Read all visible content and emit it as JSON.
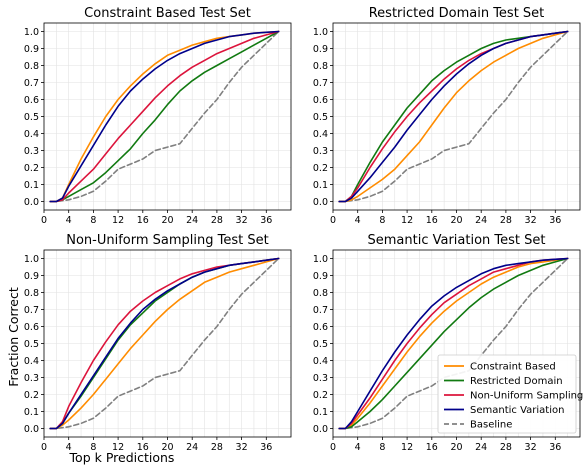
{
  "figure": {
    "ylabel": "Fraction Correct",
    "xlabel": "Top k Predictions"
  },
  "chart_data": [
    {
      "type": "line",
      "title": "Constraint Based Test Set",
      "xlim": [
        0,
        40
      ],
      "ylim": [
        -0.05,
        1.05
      ],
      "xticks": [
        0,
        4,
        8,
        12,
        16,
        20,
        24,
        28,
        32,
        36
      ],
      "yticks": [
        0.0,
        0.1,
        0.2,
        0.3,
        0.4,
        0.5,
        0.6,
        0.7,
        0.8,
        0.9,
        1.0
      ],
      "grid": true,
      "series": [
        {
          "name": "Constraint Based",
          "color": "#ff8c00",
          "dash": "solid",
          "x": [
            1,
            2,
            3,
            4,
            6,
            8,
            10,
            12,
            14,
            16,
            18,
            20,
            22,
            24,
            26,
            28,
            30,
            32,
            34,
            36,
            38
          ],
          "y": [
            0.0,
            0.0,
            0.02,
            0.1,
            0.25,
            0.38,
            0.5,
            0.6,
            0.68,
            0.75,
            0.81,
            0.86,
            0.89,
            0.92,
            0.94,
            0.96,
            0.97,
            0.98,
            0.99,
            0.995,
            1.0
          ]
        },
        {
          "name": "Restricted Domain",
          "color": "#117a11",
          "dash": "solid",
          "x": [
            1,
            2,
            3,
            4,
            6,
            8,
            10,
            12,
            14,
            16,
            18,
            20,
            22,
            24,
            26,
            28,
            30,
            32,
            34,
            36,
            38
          ],
          "y": [
            0.0,
            0.0,
            0.01,
            0.03,
            0.07,
            0.11,
            0.17,
            0.24,
            0.31,
            0.4,
            0.48,
            0.57,
            0.65,
            0.71,
            0.76,
            0.8,
            0.84,
            0.88,
            0.92,
            0.96,
            1.0
          ]
        },
        {
          "name": "Non-Uniform Sampling",
          "color": "#dc143c",
          "dash": "solid",
          "x": [
            1,
            2,
            3,
            4,
            6,
            8,
            10,
            12,
            14,
            16,
            18,
            20,
            22,
            24,
            26,
            28,
            30,
            32,
            34,
            36,
            38
          ],
          "y": [
            0.0,
            0.0,
            0.01,
            0.05,
            0.12,
            0.19,
            0.28,
            0.37,
            0.45,
            0.53,
            0.61,
            0.68,
            0.74,
            0.79,
            0.83,
            0.87,
            0.9,
            0.93,
            0.96,
            0.98,
            1.0
          ]
        },
        {
          "name": "Semantic Variation",
          "color": "#00008b",
          "dash": "solid",
          "x": [
            1,
            2,
            3,
            4,
            6,
            8,
            10,
            12,
            14,
            16,
            18,
            20,
            22,
            24,
            26,
            28,
            30,
            32,
            34,
            36,
            38
          ],
          "y": [
            0.0,
            0.0,
            0.02,
            0.09,
            0.21,
            0.33,
            0.45,
            0.56,
            0.65,
            0.72,
            0.78,
            0.83,
            0.87,
            0.9,
            0.93,
            0.95,
            0.97,
            0.98,
            0.99,
            0.995,
            1.0
          ]
        },
        {
          "name": "Baseline",
          "color": "#808080",
          "dash": "dashed",
          "x": [
            1,
            2,
            4,
            6,
            8,
            10,
            12,
            14,
            16,
            18,
            20,
            22,
            24,
            26,
            28,
            30,
            32,
            34,
            36,
            38
          ],
          "y": [
            0.0,
            0.0,
            0.01,
            0.03,
            0.06,
            0.12,
            0.19,
            0.22,
            0.25,
            0.3,
            0.32,
            0.34,
            0.43,
            0.52,
            0.6,
            0.7,
            0.79,
            0.86,
            0.93,
            1.0
          ]
        }
      ]
    },
    {
      "type": "line",
      "title": "Restricted Domain Test Set",
      "xlim": [
        0,
        40
      ],
      "ylim": [
        -0.05,
        1.05
      ],
      "xticks": [
        0,
        4,
        8,
        12,
        16,
        20,
        24,
        28,
        32,
        36
      ],
      "yticks": [
        0.0,
        0.1,
        0.2,
        0.3,
        0.4,
        0.5,
        0.6,
        0.7,
        0.8,
        0.9,
        1.0
      ],
      "grid": true,
      "series": [
        {
          "name": "Constraint Based",
          "color": "#ff8c00",
          "dash": "solid",
          "x": [
            1,
            2,
            3,
            4,
            6,
            8,
            10,
            12,
            14,
            16,
            18,
            20,
            22,
            24,
            26,
            28,
            30,
            32,
            34,
            36,
            38
          ],
          "y": [
            0.0,
            0.0,
            0.01,
            0.03,
            0.08,
            0.13,
            0.19,
            0.27,
            0.35,
            0.45,
            0.55,
            0.64,
            0.71,
            0.77,
            0.82,
            0.86,
            0.9,
            0.93,
            0.96,
            0.98,
            1.0
          ]
        },
        {
          "name": "Restricted Domain",
          "color": "#117a11",
          "dash": "solid",
          "x": [
            1,
            2,
            3,
            4,
            6,
            8,
            10,
            12,
            14,
            16,
            18,
            20,
            22,
            24,
            26,
            28,
            30,
            32,
            34,
            36,
            38
          ],
          "y": [
            0.0,
            0.0,
            0.03,
            0.1,
            0.23,
            0.35,
            0.45,
            0.55,
            0.63,
            0.71,
            0.77,
            0.82,
            0.86,
            0.9,
            0.93,
            0.95,
            0.96,
            0.97,
            0.98,
            0.99,
            1.0
          ]
        },
        {
          "name": "Non-Uniform Sampling",
          "color": "#dc143c",
          "dash": "solid",
          "x": [
            1,
            2,
            3,
            4,
            6,
            8,
            10,
            12,
            14,
            16,
            18,
            20,
            22,
            24,
            26,
            28,
            30,
            32,
            34,
            36,
            38
          ],
          "y": [
            0.0,
            0.0,
            0.03,
            0.08,
            0.2,
            0.31,
            0.41,
            0.5,
            0.58,
            0.65,
            0.72,
            0.78,
            0.83,
            0.87,
            0.9,
            0.93,
            0.95,
            0.97,
            0.98,
            0.99,
            1.0
          ]
        },
        {
          "name": "Semantic Variation",
          "color": "#00008b",
          "dash": "solid",
          "x": [
            1,
            2,
            3,
            4,
            6,
            8,
            10,
            12,
            14,
            16,
            18,
            20,
            22,
            24,
            26,
            28,
            30,
            32,
            34,
            36,
            38
          ],
          "y": [
            0.0,
            0.0,
            0.02,
            0.06,
            0.14,
            0.23,
            0.32,
            0.42,
            0.51,
            0.6,
            0.68,
            0.75,
            0.81,
            0.86,
            0.9,
            0.93,
            0.95,
            0.97,
            0.98,
            0.99,
            1.0
          ]
        },
        {
          "name": "Baseline",
          "color": "#808080",
          "dash": "dashed",
          "x": [
            1,
            2,
            4,
            6,
            8,
            10,
            12,
            14,
            16,
            18,
            20,
            22,
            24,
            26,
            28,
            30,
            32,
            34,
            36,
            38
          ],
          "y": [
            0.0,
            0.0,
            0.01,
            0.03,
            0.06,
            0.12,
            0.19,
            0.22,
            0.25,
            0.3,
            0.32,
            0.34,
            0.43,
            0.52,
            0.6,
            0.7,
            0.79,
            0.86,
            0.93,
            1.0
          ]
        }
      ]
    },
    {
      "type": "line",
      "title": "Non-Uniform Sampling Test Set",
      "xlim": [
        0,
        40
      ],
      "ylim": [
        -0.05,
        1.05
      ],
      "xticks": [
        0,
        4,
        8,
        12,
        16,
        20,
        24,
        28,
        32,
        36
      ],
      "yticks": [
        0.0,
        0.1,
        0.2,
        0.3,
        0.4,
        0.5,
        0.6,
        0.7,
        0.8,
        0.9,
        1.0
      ],
      "grid": true,
      "series": [
        {
          "name": "Constraint Based",
          "color": "#ff8c00",
          "dash": "solid",
          "x": [
            1,
            2,
            3,
            4,
            6,
            8,
            10,
            12,
            14,
            16,
            18,
            20,
            22,
            24,
            26,
            28,
            30,
            32,
            34,
            36,
            38
          ],
          "y": [
            0.0,
            0.0,
            0.02,
            0.05,
            0.12,
            0.2,
            0.29,
            0.38,
            0.47,
            0.55,
            0.63,
            0.7,
            0.76,
            0.81,
            0.86,
            0.89,
            0.92,
            0.94,
            0.96,
            0.98,
            1.0
          ]
        },
        {
          "name": "Restricted Domain",
          "color": "#117a11",
          "dash": "solid",
          "x": [
            1,
            2,
            3,
            4,
            6,
            8,
            10,
            12,
            14,
            16,
            18,
            20,
            22,
            24,
            26,
            28,
            30,
            32,
            34,
            36,
            38
          ],
          "y": [
            0.0,
            0.0,
            0.03,
            0.09,
            0.19,
            0.3,
            0.41,
            0.52,
            0.61,
            0.68,
            0.75,
            0.8,
            0.85,
            0.89,
            0.92,
            0.94,
            0.96,
            0.97,
            0.98,
            0.99,
            1.0
          ]
        },
        {
          "name": "Non-Uniform Sampling",
          "color": "#dc143c",
          "dash": "solid",
          "x": [
            1,
            2,
            3,
            4,
            6,
            8,
            10,
            12,
            14,
            16,
            18,
            20,
            22,
            24,
            26,
            28,
            30,
            32,
            34,
            36,
            38
          ],
          "y": [
            0.0,
            0.0,
            0.04,
            0.13,
            0.27,
            0.4,
            0.51,
            0.61,
            0.69,
            0.75,
            0.8,
            0.84,
            0.88,
            0.91,
            0.93,
            0.95,
            0.96,
            0.97,
            0.98,
            0.99,
            1.0
          ]
        },
        {
          "name": "Semantic Variation",
          "color": "#00008b",
          "dash": "solid",
          "x": [
            1,
            2,
            3,
            4,
            6,
            8,
            10,
            12,
            14,
            16,
            18,
            20,
            22,
            24,
            26,
            28,
            30,
            32,
            34,
            36,
            38
          ],
          "y": [
            0.0,
            0.0,
            0.03,
            0.09,
            0.2,
            0.31,
            0.42,
            0.53,
            0.62,
            0.7,
            0.76,
            0.81,
            0.85,
            0.89,
            0.92,
            0.94,
            0.96,
            0.97,
            0.98,
            0.99,
            1.0
          ]
        },
        {
          "name": "Baseline",
          "color": "#808080",
          "dash": "dashed",
          "x": [
            1,
            2,
            4,
            6,
            8,
            10,
            12,
            14,
            16,
            18,
            20,
            22,
            24,
            26,
            28,
            30,
            32,
            34,
            36,
            38
          ],
          "y": [
            0.0,
            0.0,
            0.01,
            0.03,
            0.06,
            0.12,
            0.19,
            0.22,
            0.25,
            0.3,
            0.32,
            0.34,
            0.43,
            0.52,
            0.6,
            0.7,
            0.79,
            0.86,
            0.93,
            1.0
          ]
        }
      ]
    },
    {
      "type": "line",
      "title": "Semantic Variation Test Set",
      "xlim": [
        0,
        40
      ],
      "ylim": [
        -0.05,
        1.05
      ],
      "xticks": [
        0,
        4,
        8,
        12,
        16,
        20,
        24,
        28,
        32,
        36
      ],
      "yticks": [
        0.0,
        0.1,
        0.2,
        0.3,
        0.4,
        0.5,
        0.6,
        0.7,
        0.8,
        0.9,
        1.0
      ],
      "grid": true,
      "legend_position": "lower-right",
      "series": [
        {
          "name": "Constraint Based",
          "color": "#ff8c00",
          "dash": "solid",
          "x": [
            1,
            2,
            3,
            4,
            6,
            8,
            10,
            12,
            14,
            16,
            18,
            20,
            22,
            24,
            26,
            28,
            30,
            32,
            34,
            36,
            38
          ],
          "y": [
            0.0,
            0.0,
            0.02,
            0.06,
            0.15,
            0.25,
            0.35,
            0.45,
            0.54,
            0.62,
            0.69,
            0.75,
            0.8,
            0.85,
            0.89,
            0.92,
            0.95,
            0.97,
            0.98,
            0.99,
            1.0
          ]
        },
        {
          "name": "Restricted Domain",
          "color": "#117a11",
          "dash": "solid",
          "x": [
            1,
            2,
            3,
            4,
            6,
            8,
            10,
            12,
            14,
            16,
            18,
            20,
            22,
            24,
            26,
            28,
            30,
            32,
            34,
            36,
            38
          ],
          "y": [
            0.0,
            0.0,
            0.01,
            0.04,
            0.1,
            0.17,
            0.25,
            0.33,
            0.41,
            0.49,
            0.57,
            0.64,
            0.71,
            0.77,
            0.82,
            0.86,
            0.9,
            0.93,
            0.96,
            0.98,
            1.0
          ]
        },
        {
          "name": "Non-Uniform Sampling",
          "color": "#dc143c",
          "dash": "solid",
          "x": [
            1,
            2,
            3,
            4,
            6,
            8,
            10,
            12,
            14,
            16,
            18,
            20,
            22,
            24,
            26,
            28,
            30,
            32,
            34,
            36,
            38
          ],
          "y": [
            0.0,
            0.0,
            0.03,
            0.08,
            0.18,
            0.29,
            0.4,
            0.5,
            0.59,
            0.67,
            0.74,
            0.79,
            0.84,
            0.88,
            0.92,
            0.94,
            0.96,
            0.98,
            0.99,
            0.995,
            1.0
          ]
        },
        {
          "name": "Semantic Variation",
          "color": "#00008b",
          "dash": "solid",
          "x": [
            1,
            2,
            3,
            4,
            6,
            8,
            10,
            12,
            14,
            16,
            18,
            20,
            22,
            24,
            26,
            28,
            30,
            32,
            34,
            36,
            38
          ],
          "y": [
            0.0,
            0.0,
            0.04,
            0.1,
            0.22,
            0.34,
            0.45,
            0.55,
            0.64,
            0.72,
            0.78,
            0.83,
            0.87,
            0.91,
            0.94,
            0.96,
            0.97,
            0.98,
            0.99,
            0.995,
            1.0
          ]
        },
        {
          "name": "Baseline",
          "color": "#808080",
          "dash": "dashed",
          "x": [
            1,
            2,
            4,
            6,
            8,
            10,
            12,
            14,
            16,
            18,
            20,
            22,
            24,
            26,
            28,
            30,
            32,
            34,
            36,
            38
          ],
          "y": [
            0.0,
            0.0,
            0.01,
            0.03,
            0.06,
            0.12,
            0.19,
            0.22,
            0.25,
            0.3,
            0.32,
            0.34,
            0.43,
            0.52,
            0.6,
            0.7,
            0.79,
            0.86,
            0.93,
            1.0
          ]
        }
      ]
    }
  ]
}
